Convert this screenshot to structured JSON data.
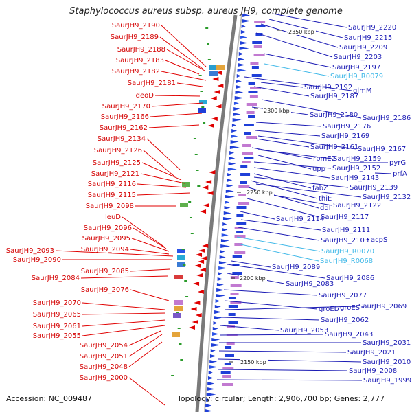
{
  "title": "Staphylococcus aureus subsp. aureus JH9, complete genome",
  "footer": {
    "accession": "Accession: NC_009487",
    "topology": "Topology: circular; Length: 2,906,700 bp; Genes: 2,777"
  },
  "kbp_ticks": [
    "2350 kbp",
    "2300 kbp",
    "2250 kbp",
    "2200 kbp",
    "2150 kbp"
  ],
  "left_labels": [
    "SaurJH9_2190",
    "SaurJH9_2189",
    "SaurJH9_2188",
    "SaurJH9_2183",
    "SaurJH9_2182",
    "SaurJH9_2181",
    "deoD",
    "SaurJH9_2170",
    "SaurJH9_2166",
    "SaurJH9_2162",
    "SaurJH9_2134",
    "SaurJH9_2126",
    "SaurJH9_2125",
    "SaurJH9_2121",
    "SaurJH9_2116",
    "SaurJH9_2115",
    "SaurJH9_2098",
    "leuD",
    "SaurJH9_2096",
    "SaurJH9_2095",
    "SaurJH9_2094",
    "SaurJH9_2093",
    "SaurJH9_2090",
    "SaurJH9_2085",
    "SaurJH9_2084",
    "SaurJH9_2076",
    "SaurJH9_2070",
    "SaurJH9_2065",
    "SaurJH9_2061",
    "SaurJH9_2055",
    "SaurJH9_2054",
    "SaurJH9_2051",
    "SaurJH9_2048",
    "SaurJH9_2000"
  ],
  "right_labels": [
    "SaurJH9_2220",
    "SaurJH9_2215",
    "SaurJH9_2209",
    "SaurJH9_2203",
    "SaurJH9_2197",
    "SaurJH9_R0079",
    "glmM",
    "SaurJH9_2192",
    "SaurJH9_2187",
    "SaurJH9_2186",
    "SaurJH9_2180",
    "SaurJH9_2176",
    "SaurJH9_2169",
    "SaurJH9_2167",
    "SaurJH9_2161",
    "rpmE2",
    "SaurJH9_2159",
    "pyrG",
    "upp",
    "SaurJH9_2152",
    "prfA",
    "SaurJH9_2143",
    "fabZ",
    "SaurJH9_2139",
    "thiE",
    "SaurJH9_2132",
    "ddl",
    "SaurJH9_2122",
    "SaurJH9_2117",
    "SaurJH9_2114",
    "SaurJH9_2111",
    "SaurJH9_2103",
    "acpS",
    "SaurJH9_R0070",
    "SaurJH9_R0068",
    "SaurJH9_2089",
    "SaurJH9_2086",
    "SaurJH9_2083",
    "SaurJH9_2077",
    "groEL",
    "groES",
    "SaurJH9_2069",
    "SaurJH9_2062",
    "SaurJH9_2053",
    "SaurJH9_2043",
    "SaurJH9_2031",
    "SaurJH9_2021",
    "SaurJH9_2010",
    "SaurJH9_2008",
    "SaurJH9_1999"
  ]
}
